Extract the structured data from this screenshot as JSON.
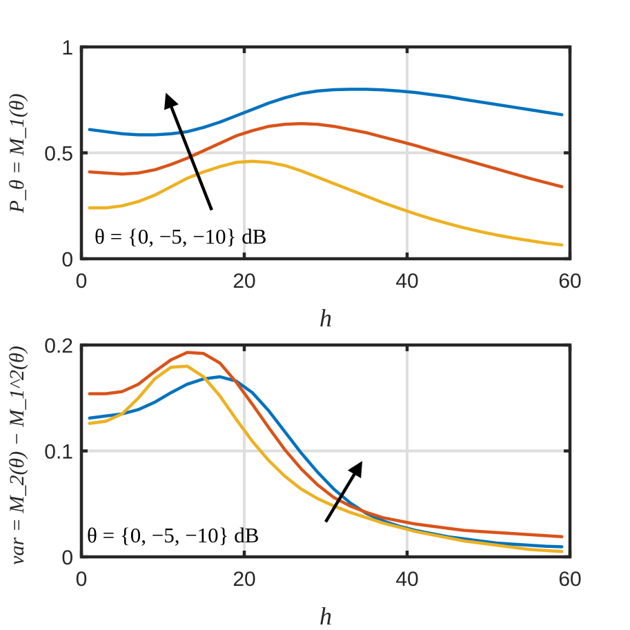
{
  "chart_data": [
    {
      "type": "line",
      "xlabel": "h",
      "ylabel": "P_θ = M_1(θ)",
      "xlim": [
        0,
        60
      ],
      "ylim": [
        0,
        1
      ],
      "xticks": [
        0,
        20,
        40,
        60
      ],
      "yticks": [
        0,
        0.5,
        1
      ],
      "xtick_labels": [
        "0",
        "20",
        "40",
        "60"
      ],
      "ytick_labels": [
        "0",
        "0.5",
        "1"
      ],
      "grid": true,
      "annotation": "θ = {0, −5, −10} dB",
      "arrow": {
        "from": [
          16,
          0.23
        ],
        "to": [
          10.5,
          0.77
        ]
      },
      "x": [
        1,
        3,
        5,
        7,
        9,
        11,
        13,
        15,
        17,
        19,
        21,
        23,
        25,
        27,
        29,
        31,
        33,
        35,
        37,
        39,
        41,
        43,
        45,
        47,
        49,
        51,
        53,
        55,
        57,
        59
      ],
      "series": [
        {
          "name": "θ = 0 dB",
          "color": "#0072BD",
          "values": [
            0.61,
            0.6,
            0.59,
            0.585,
            0.585,
            0.59,
            0.6,
            0.62,
            0.645,
            0.675,
            0.705,
            0.735,
            0.76,
            0.78,
            0.792,
            0.798,
            0.8,
            0.8,
            0.797,
            0.792,
            0.785,
            0.775,
            0.765,
            0.752,
            0.74,
            0.728,
            0.716,
            0.704,
            0.692,
            0.68
          ]
        },
        {
          "name": "θ = −5 dB",
          "color": "#D95319",
          "values": [
            0.41,
            0.405,
            0.4,
            0.405,
            0.42,
            0.445,
            0.475,
            0.51,
            0.545,
            0.58,
            0.605,
            0.625,
            0.635,
            0.638,
            0.635,
            0.625,
            0.61,
            0.595,
            0.575,
            0.555,
            0.535,
            0.512,
            0.49,
            0.468,
            0.446,
            0.424,
            0.402,
            0.38,
            0.36,
            0.34
          ]
        },
        {
          "name": "θ = −10 dB",
          "color": "#EDB120",
          "values": [
            0.24,
            0.24,
            0.25,
            0.27,
            0.3,
            0.34,
            0.38,
            0.41,
            0.435,
            0.455,
            0.46,
            0.455,
            0.44,
            0.415,
            0.385,
            0.355,
            0.325,
            0.295,
            0.265,
            0.238,
            0.212,
            0.188,
            0.166,
            0.146,
            0.128,
            0.112,
            0.098,
            0.086,
            0.074,
            0.065
          ]
        }
      ]
    },
    {
      "type": "line",
      "xlabel": "h",
      "ylabel": "var = M_2(θ) − M_1^2(θ)",
      "xlim": [
        0,
        60
      ],
      "ylim": [
        0,
        0.2
      ],
      "xticks": [
        0,
        20,
        40,
        60
      ],
      "yticks": [
        0,
        0.1,
        0.2
      ],
      "xtick_labels": [
        "0",
        "20",
        "40",
        "60"
      ],
      "ytick_labels": [
        "0",
        "0.1",
        "0.2"
      ],
      "grid": true,
      "annotation": "θ = {0, −5, −10} dB",
      "arrow": {
        "from": [
          30,
          0.033
        ],
        "to": [
          34.3,
          0.088
        ]
      },
      "x": [
        1,
        3,
        5,
        7,
        9,
        11,
        13,
        15,
        17,
        19,
        21,
        23,
        25,
        27,
        29,
        31,
        33,
        35,
        37,
        39,
        41,
        43,
        45,
        47,
        49,
        51,
        53,
        55,
        57,
        59
      ],
      "series": [
        {
          "name": "θ = 0 dB",
          "color": "#0072BD",
          "values": [
            0.131,
            0.133,
            0.135,
            0.139,
            0.146,
            0.155,
            0.163,
            0.168,
            0.17,
            0.166,
            0.155,
            0.138,
            0.118,
            0.098,
            0.08,
            0.064,
            0.051,
            0.041,
            0.034,
            0.029,
            0.025,
            0.022,
            0.019,
            0.017,
            0.015,
            0.013,
            0.012,
            0.011,
            0.01,
            0.0095
          ]
        },
        {
          "name": "θ = −5 dB",
          "color": "#D95319",
          "values": [
            0.154,
            0.154,
            0.156,
            0.163,
            0.175,
            0.186,
            0.193,
            0.192,
            0.183,
            0.165,
            0.144,
            0.122,
            0.101,
            0.083,
            0.068,
            0.056,
            0.048,
            0.042,
            0.037,
            0.034,
            0.031,
            0.029,
            0.027,
            0.025,
            0.024,
            0.023,
            0.022,
            0.021,
            0.02,
            0.019
          ]
        },
        {
          "name": "θ = −10 dB",
          "color": "#EDB120",
          "values": [
            0.126,
            0.128,
            0.135,
            0.15,
            0.168,
            0.179,
            0.18,
            0.17,
            0.152,
            0.13,
            0.109,
            0.091,
            0.076,
            0.064,
            0.055,
            0.048,
            0.042,
            0.037,
            0.032,
            0.028,
            0.024,
            0.021,
            0.018,
            0.015,
            0.013,
            0.011,
            0.009,
            0.007,
            0.006,
            0.005
          ]
        }
      ]
    }
  ]
}
